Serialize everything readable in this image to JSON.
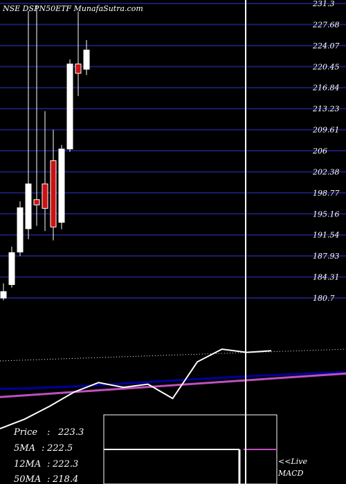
{
  "header": {
    "title": "NSE DSPN50ETF MunafaSutra.com"
  },
  "colors": {
    "background": "#000000",
    "grid": "#1c1c6e",
    "up_candle": "#ffffff",
    "down_candle": "#cc1111",
    "ma_line": "#0000a0",
    "long_ma_line": "#c050c0",
    "momentum_line": "#ffffff",
    "marker_line": "#ffffff"
  },
  "stats": [
    {
      "label": "Price",
      "value": "223.3"
    },
    {
      "label": "5MA",
      "value": "222.5"
    },
    {
      "label": "12MA",
      "value": "222.3"
    },
    {
      "label": "50MA",
      "value": "218.4"
    }
  ],
  "macd_panel": {
    "live_label": "<<Live",
    "macd_label": "MACD"
  },
  "chart_data": {
    "type": "candlestick",
    "title": "NSE DSPN50ETF MunafaSutra.com",
    "y_tick_labels": [
      "231.3",
      "227.68",
      "224.07",
      "220.45",
      "216.84",
      "213.23",
      "209.61",
      "206",
      "202.38",
      "198.77",
      "195.16",
      "191.54",
      "187.93",
      "184.31",
      "180.7"
    ],
    "ylim": [
      180.7,
      231.3
    ],
    "grid": true,
    "candles": [
      {
        "open": 180.7,
        "close": 181.8,
        "high": 183.2,
        "low": 180.3
      },
      {
        "open": 183.0,
        "close": 188.5,
        "high": 189.5,
        "low": 182.5
      },
      {
        "open": 188.6,
        "close": 196.2,
        "high": 197.3,
        "low": 187.9
      },
      {
        "open": 192.6,
        "close": 200.3,
        "high": 230.0,
        "low": 190.8
      },
      {
        "open": 197.6,
        "close": 196.7,
        "high": 231.0,
        "low": 193.1
      },
      {
        "open": 200.3,
        "close": 196.1,
        "high": 212.8,
        "low": 192.2
      },
      {
        "open": 204.3,
        "close": 192.9,
        "high": 209.6,
        "low": 190.6
      },
      {
        "open": 193.7,
        "close": 206.3,
        "high": 207.0,
        "low": 192.5
      },
      {
        "open": 206.3,
        "close": 220.9,
        "high": 221.7,
        "low": 205.8
      },
      {
        "open": 220.9,
        "close": 219.3,
        "high": 229.9,
        "low": 215.4
      },
      {
        "open": 220.0,
        "close": 223.3,
        "high": 225.0,
        "low": 219.0
      }
    ],
    "indicators": {
      "momentum_line": [
        0.0,
        0.12,
        0.28,
        0.46,
        0.58,
        0.52,
        0.56,
        0.38,
        0.84,
        1.0,
        0.96,
        0.98
      ],
      "ma_line_level": 0.58,
      "long_ma_line_level": 0.54
    },
    "stats": {
      "Price": 223.3,
      "5MA": 222.5,
      "12MA": 222.3,
      "50MA": 218.4
    }
  }
}
